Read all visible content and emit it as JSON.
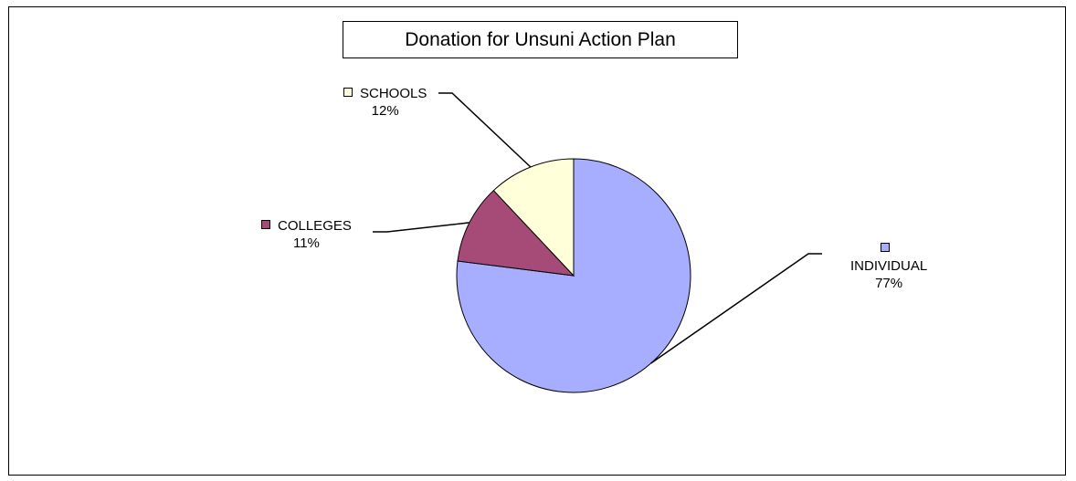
{
  "chart_data": {
    "type": "pie",
    "title": "Donation for Unsuni Action Plan",
    "slices": [
      {
        "name": "INDIVIDUAL",
        "value": 77,
        "label": "77%",
        "color": "#A8AEFF"
      },
      {
        "name": "COLLEGES",
        "value": 11,
        "label": "11%",
        "color": "#A64A78"
      },
      {
        "name": "SCHOOLS",
        "value": 12,
        "label": "12%",
        "color": "#FFFFD9"
      }
    ],
    "legend": "none",
    "data_labels": "category-and-percent"
  }
}
